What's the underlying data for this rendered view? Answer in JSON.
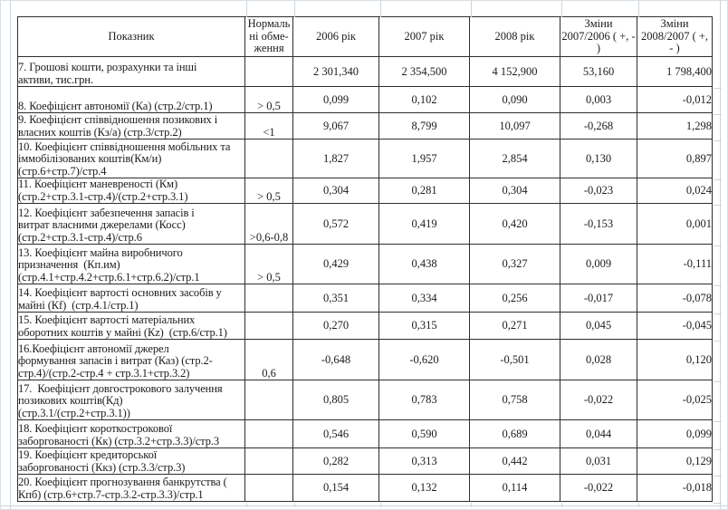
{
  "table": {
    "headers": {
      "indicator": "Показник",
      "norm": "Нормаль\nні обме-\nження",
      "y2006": "2006 рік",
      "y2007": "2007 рік",
      "y2008": "2008 рік",
      "chg_2007_2006": "Зміни\n2007/2006 ( +, -\n)",
      "chg_2008_2007": "Зміни\n2008/2007 ( +,\n- )"
    },
    "rows": [
      {
        "indicator": "7. Грошові кошти, розрахунки та інші\nактиви, тис.грн.",
        "norm": "",
        "v2006": "2 301,340",
        "v2007": "2 354,500",
        "v2008": "4 152,900",
        "chg1": "53,160",
        "chg2": "1 798,400"
      },
      {
        "indicator": "8. Коефіцієнт автономії (Ка) (стр.2/стр.1)",
        "norm": "> 0,5",
        "v2006": "0,099",
        "v2007": "0,102",
        "v2008": "0,090",
        "chg1": "0,003",
        "chg2": "-0,012"
      },
      {
        "indicator": "9. Коефіцієнт співвідношення позикових і\nвласних коштів (Кз/а) (стр.3/стр.2)",
        "norm": "<1",
        "v2006": "9,067",
        "v2007": "8,799",
        "v2008": "10,097",
        "chg1": "-0,268",
        "chg2": "1,298"
      },
      {
        "indicator": "10. Коефіцієнт співвідношення мобільних та\nіммобілізованих коштів(Км/и)\n(стр.6+стр.7)/стр.4",
        "norm": "",
        "v2006": "1,827",
        "v2007": "1,957",
        "v2008": "2,854",
        "chg1": "0,130",
        "chg2": "0,897"
      },
      {
        "indicator": "11. Коефіцієнт маневреності (Км)\n(стр.2+стр.3.1-стр.4)/(стр.2+стр.3.1)",
        "norm": "> 0,5",
        "v2006": "0,304",
        "v2007": "0,281",
        "v2008": "0,304",
        "chg1": "-0,023",
        "chg2": "0,024"
      },
      {
        "indicator": "12. Коефіцієнт забезпечення запасів і\nвитрат власними джерелами (Косс)\n(стр.2+стр.3.1-стр.4)/стр.6",
        "norm": ">0,6-0,8",
        "v2006": "0,572",
        "v2007": "0,419",
        "v2008": "0,420",
        "chg1": "-0,153",
        "chg2": "0,001"
      },
      {
        "indicator": "13. Коефіцієнт майна виробничого\nпризначення  (Кп.им)\n(стр.4.1+стр.4.2+стр.6.1+стр.6.2)/стр.1",
        "norm": "> 0,5",
        "v2006": "0,429",
        "v2007": "0,438",
        "v2008": "0,327",
        "chg1": "0,009",
        "chg2": "-0,111"
      },
      {
        "indicator": "14. Коефіцієнт вартості основних засобів у\nмайні (Кf)  (стр.4.1/стр.1)",
        "norm": "",
        "v2006": "0,351",
        "v2007": "0,334",
        "v2008": "0,256",
        "chg1": "-0,017",
        "chg2": "-0,078"
      },
      {
        "indicator": "15. Коефіцієнт вартості матеріальних\nоборотних коштів у майні (Кz)  (стр.6/стр.1)",
        "norm": "",
        "v2006": "0,270",
        "v2007": "0,315",
        "v2008": "0,271",
        "chg1": "0,045",
        "chg2": "-0,045"
      },
      {
        "indicator": "16.Коефіцієнт автономії джерел\nформування запасів і витрат (Каз) (стр.2-\nстр.4)/(стр.2-стр.4 + стр.3.1+стр.3.2)",
        "norm": "0,6",
        "v2006": "-0,648",
        "v2007": "-0,620",
        "v2008": "-0,501",
        "chg1": "0,028",
        "chg2": "0,120"
      },
      {
        "indicator": "17.  Коефіцієнт довгострокового залучення\nпозикових коштів(Кд)\n(стр.3.1/(стр.2+стр.3.1))",
        "norm": "",
        "v2006": "0,805",
        "v2007": "0,783",
        "v2008": "0,758",
        "chg1": "-0,022",
        "chg2": "-0,025"
      },
      {
        "indicator": "18. Коефіцієнт короткострокової\nзаборгованості (Кк) (стр.3.2+стр.3.3)/стр.3",
        "norm": "",
        "v2006": "0,546",
        "v2007": "0,590",
        "v2008": "0,689",
        "chg1": "0,044",
        "chg2": "0,099"
      },
      {
        "indicator": "19. Коефіцієнт кредиторської\nзаборгованості (Ккз) (стр.3.3/стр.3)",
        "norm": "",
        "v2006": "0,282",
        "v2007": "0,313",
        "v2008": "0,442",
        "chg1": "0,031",
        "chg2": "0,129"
      },
      {
        "indicator": "20. Коефіцієнт прогнозування банкрутства (\nКпб) (стр.6+стр.7-стр.3.2-стр.3.3)/стр.1",
        "norm": "",
        "v2006": "0,154",
        "v2007": "0,132",
        "v2008": "0,114",
        "chg1": "-0,022",
        "chg2": "-0,018"
      }
    ]
  }
}
